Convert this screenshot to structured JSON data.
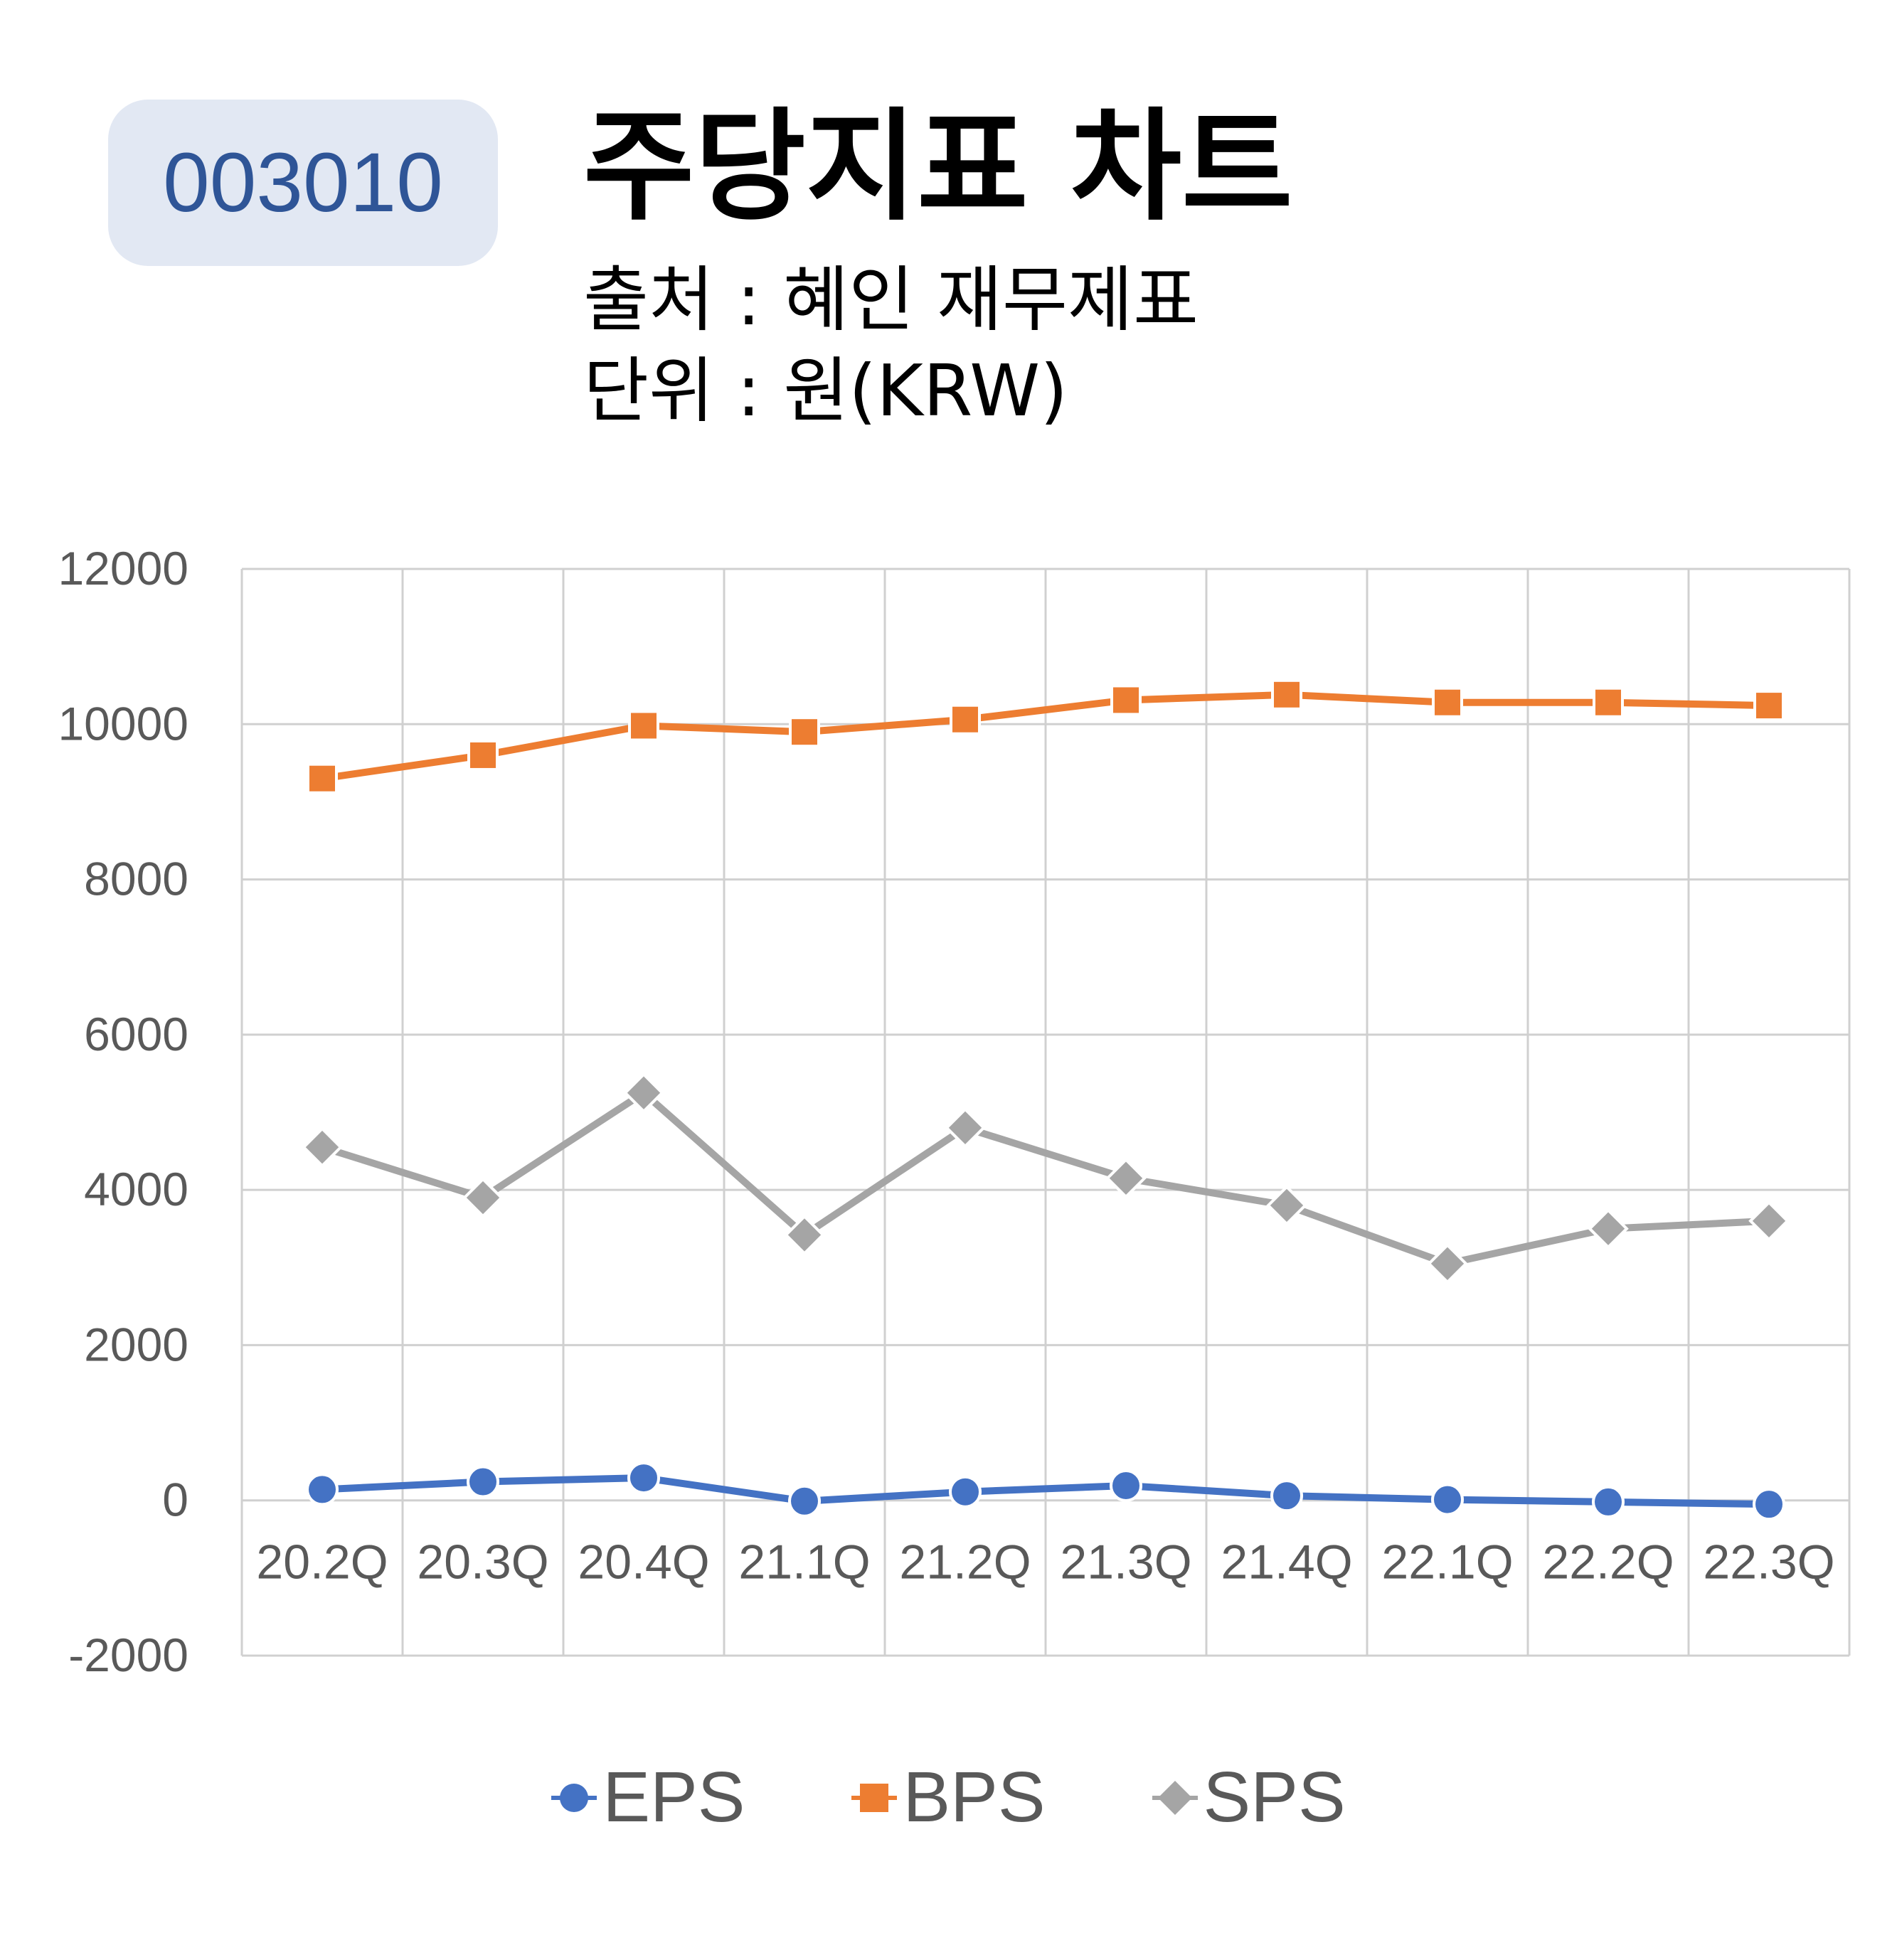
{
  "badge": {
    "code": "003010"
  },
  "header": {
    "title": "주당지표 차트",
    "source": "출처 : 혜인 재무제표",
    "unit": "단위 : 원(KRW)"
  },
  "chart_data": {
    "type": "line",
    "categories": [
      "20.2Q",
      "20.3Q",
      "20.4Q",
      "21.1Q",
      "21.2Q",
      "21.3Q",
      "21.4Q",
      "22.1Q",
      "22.2Q",
      "22.3Q"
    ],
    "ylim": [
      -2000,
      12000
    ],
    "yticks": [
      -2000,
      0,
      2000,
      4000,
      6000,
      8000,
      10000,
      12000
    ],
    "grid": true,
    "legend_position": "bottom",
    "series": [
      {
        "name": "EPS",
        "marker": "circle",
        "color": "#4472c4",
        "values": [
          140,
          240,
          290,
          -10,
          110,
          190,
          60,
          10,
          -20,
          -50
        ]
      },
      {
        "name": "BPS",
        "marker": "square",
        "color": "#ed7d31",
        "values": [
          9300,
          9600,
          9980,
          9900,
          10060,
          10310,
          10380,
          10280,
          10280,
          10240
        ]
      },
      {
        "name": "SPS",
        "marker": "diamond",
        "color": "#a5a5a5",
        "values": [
          4550,
          3900,
          5250,
          3420,
          4800,
          4150,
          3800,
          3050,
          3500,
          3600
        ]
      }
    ]
  }
}
